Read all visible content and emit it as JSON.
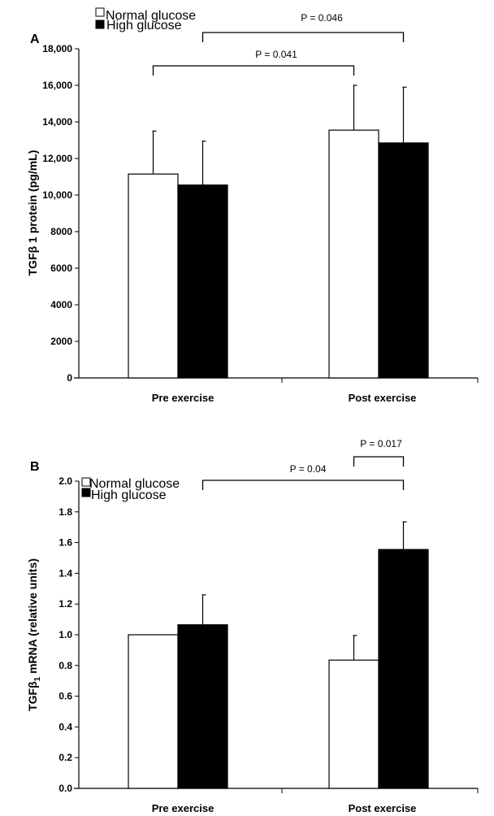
{
  "chart_data": [
    {
      "panel": "A",
      "type": "bar",
      "ylabel": "TGFβ 1 protein (pg/mL)",
      "ylim": [
        0,
        18000
      ],
      "yticks": [
        "0",
        "2000",
        "4000",
        "6000",
        "8000",
        "10,000",
        "12,000",
        "14,000",
        "16,000",
        "18,000"
      ],
      "categories": [
        "Pre exercise",
        "Post exercise"
      ],
      "series": [
        {
          "name": "Normal glucose",
          "color": "#ffffff",
          "values": [
            11150,
            13550
          ],
          "errors": [
            2350,
            2450
          ]
        },
        {
          "name": "High glucose",
          "color": "#000000",
          "values": [
            10550,
            12850
          ],
          "errors": [
            2400,
            3050
          ]
        }
      ],
      "annotations": [
        {
          "text": "P = 0.041",
          "from": [
            0,
            0
          ],
          "to": [
            1,
            0
          ]
        },
        {
          "text": "P = 0.046",
          "from": [
            0,
            1
          ],
          "to": [
            1,
            1
          ]
        }
      ],
      "legend": "top-left",
      "grid": false
    },
    {
      "panel": "B",
      "type": "bar",
      "ylabel": "TGFβ1 mRNA (relative units)",
      "ylabel_parts": {
        "before": "TGFβ",
        "sub": "1",
        "after": " mRNA (relative units)"
      },
      "ylim": [
        0,
        2.0
      ],
      "yticks": [
        "0.0",
        "0.2",
        "0.4",
        "0.6",
        "0.8",
        "1.0",
        "1.2",
        "1.4",
        "1.6",
        "1.8",
        "2.0"
      ],
      "categories": [
        "Pre exercise",
        "Post exercise"
      ],
      "series": [
        {
          "name": "Normal glucose",
          "color": "#ffffff",
          "values": [
            1.0,
            0.835
          ],
          "errors": [
            0.0,
            0.16
          ]
        },
        {
          "name": "High glucose",
          "color": "#000000",
          "values": [
            1.065,
            1.555
          ],
          "errors": [
            0.195,
            0.18
          ]
        }
      ],
      "annotations": [
        {
          "text": "P = 0.04",
          "from": [
            0,
            1
          ],
          "to": [
            1,
            1
          ]
        },
        {
          "text": "P = 0.017",
          "from": [
            1,
            0
          ],
          "to": [
            1,
            1
          ]
        }
      ],
      "legend": "top-left",
      "grid": false
    }
  ]
}
